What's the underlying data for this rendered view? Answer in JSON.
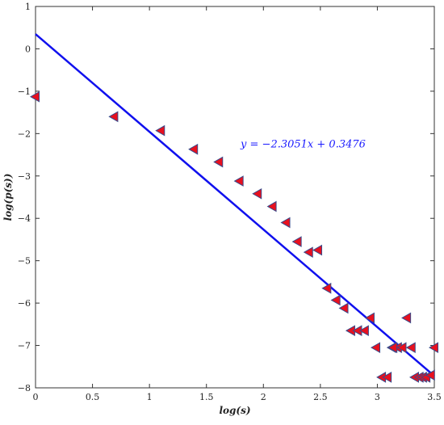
{
  "chart_data": {
    "type": "scatter",
    "title": "",
    "xlabel": "log(s)",
    "ylabel": "log(p(s))",
    "xlim": [
      0,
      3.5
    ],
    "ylim": [
      -8,
      1
    ],
    "xticks": [
      0,
      0.5,
      1,
      1.5,
      2,
      2.5,
      3,
      3.5
    ],
    "yticks": [
      1,
      0,
      -1,
      -2,
      -3,
      -4,
      -5,
      -6,
      -7,
      -8
    ],
    "xtick_labels": [
      "0",
      "0.5",
      "1",
      "1.5",
      "2",
      "2.5",
      "3",
      "3.5"
    ],
    "ytick_labels": [
      "1",
      "0",
      "−1",
      "−2",
      "−3",
      "−4",
      "−5",
      "−6",
      "−7",
      "−8"
    ],
    "grid": false,
    "series": [
      {
        "marker": "left-triangle",
        "color": "#e8101e",
        "edge_color": "#3a4a8a",
        "x": [
          0.0,
          0.69,
          1.1,
          1.39,
          1.61,
          1.79,
          1.95,
          2.08,
          2.2,
          2.3,
          2.4,
          2.48,
          2.56,
          2.64,
          2.71,
          2.77,
          2.83,
          2.89,
          2.94,
          2.99,
          3.04,
          3.09,
          3.13,
          3.18,
          3.22,
          3.26,
          3.3,
          3.33,
          3.37,
          3.4,
          3.43,
          3.47,
          3.5,
          3.14
        ],
        "y": [
          -1.13,
          -1.6,
          -1.93,
          -2.37,
          -2.67,
          -3.12,
          -3.42,
          -3.72,
          -4.1,
          -4.55,
          -4.8,
          -4.75,
          -5.65,
          -5.93,
          -6.12,
          -6.65,
          -6.65,
          -6.65,
          -6.35,
          -7.05,
          -7.75,
          -7.75,
          -7.05,
          -7.05,
          -7.05,
          -6.35,
          -7.05,
          -7.75,
          -7.75,
          -7.75,
          -7.75,
          -7.7,
          -7.05,
          -7.05
        ]
      }
    ],
    "fit_line": {
      "color": "#1010ee",
      "slope": -2.3051,
      "intercept": 0.3476,
      "x_range": [
        0,
        3.5
      ]
    },
    "annotation": {
      "text": "y = −2.3051x + 0.3476",
      "x": 1.8,
      "y": -2.33
    }
  }
}
